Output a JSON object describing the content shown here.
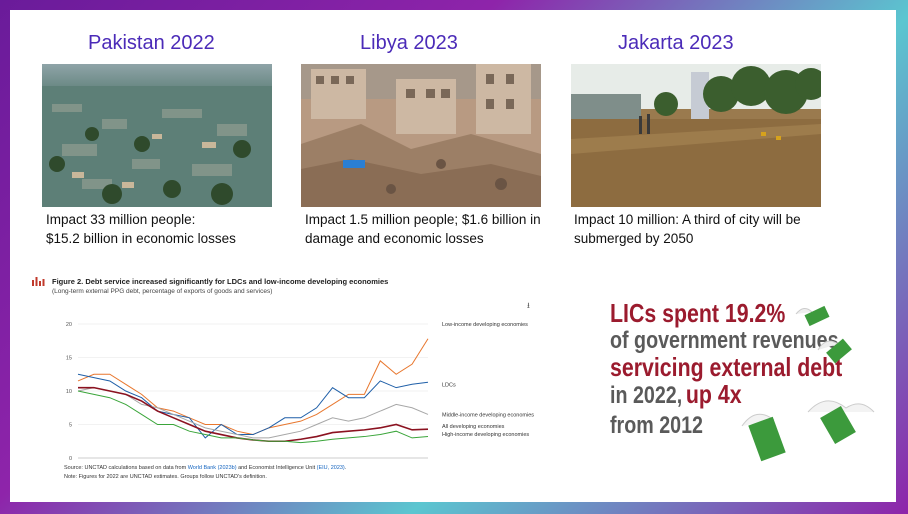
{
  "locations": [
    {
      "title": "Pakistan 2022",
      "caption_line1": "Impact 33 million people:",
      "caption_line2": "$15.2 billion in economic losses",
      "image": "flooded-village-aerial-photo"
    },
    {
      "title": "Libya 2023",
      "caption_line1": "Impact 1.5 million people; $1.6 billion in",
      "caption_line2": "damage and economic  losses",
      "image": "destroyed-buildings-photo"
    },
    {
      "title": "Jakarta 2023",
      "caption_line1": "Impact 10 million: A third of city will be",
      "caption_line2": "submerged by 2050",
      "image": "flooded-city-street-photo"
    }
  ],
  "chart": {
    "title": "Figure 2. Debt service increased significantly for LDCs and low-income developing economies",
    "subtitle": "(Long-term external PPG debt, percentage of exports of goods and services)",
    "source_prefix": "Source: UNCTAD calculations based on data from",
    "source_link1": "World Bank (2023b)",
    "source_mid": "and Economist Intelligence Unit",
    "source_link2": "(EIU, 2023)",
    "source_end": ".",
    "note": "Note: Figures for 2022 are UNCTAD estimates. Groups follow UNCTAD's definition.",
    "download_icon": "download-icon",
    "y_ticks": [
      "0",
      "5",
      "10",
      "15",
      "20"
    ],
    "x_ticks": [
      "2000",
      "2005",
      "2010",
      "2015",
      "2020"
    ]
  },
  "chart_data": {
    "type": "line",
    "x": [
      2000,
      2001,
      2002,
      2003,
      2004,
      2005,
      2006,
      2007,
      2008,
      2009,
      2010,
      2011,
      2012,
      2013,
      2014,
      2015,
      2016,
      2017,
      2018,
      2019,
      2020,
      2021,
      2022
    ],
    "ylim": [
      0,
      20
    ],
    "xlim": [
      2000,
      2022
    ],
    "series": [
      {
        "name": "Low-income developing economies",
        "color": "#e8772e",
        "values": [
          11.5,
          12.5,
          12.5,
          11.0,
          9.5,
          7.5,
          7.0,
          6.0,
          5.0,
          5.0,
          4.0,
          3.5,
          4.5,
          5.0,
          5.5,
          6.5,
          8.0,
          9.5,
          9.5,
          14.5,
          12.5,
          14.0,
          17.8
        ]
      },
      {
        "name": "LDCs",
        "color": "#1f5fa8",
        "values": [
          12.5,
          12.0,
          11.5,
          10.0,
          9.0,
          7.0,
          6.5,
          6.0,
          3.0,
          5.0,
          3.5,
          3.5,
          4.5,
          6.0,
          6.0,
          7.5,
          10.5,
          9.0,
          9.0,
          11.5,
          10.5,
          11.0,
          11.3
        ]
      },
      {
        "name": "Middle-income developing economies",
        "color": "#a7a7a7",
        "values": [
          10.0,
          10.5,
          10.0,
          9.5,
          8.0,
          7.5,
          6.5,
          5.5,
          4.5,
          4.0,
          3.5,
          3.0,
          3.0,
          3.5,
          4.0,
          5.0,
          6.0,
          5.5,
          6.0,
          7.0,
          8.0,
          7.5,
          6.5
        ]
      },
      {
        "name": "All developing economies",
        "color": "#8b1220",
        "values": [
          10.5,
          10.5,
          10.0,
          9.5,
          8.5,
          7.0,
          6.0,
          5.0,
          4.0,
          3.5,
          3.0,
          2.7,
          2.5,
          2.5,
          2.8,
          3.2,
          3.8,
          4.0,
          4.2,
          4.5,
          5.0,
          4.2,
          4.3
        ]
      },
      {
        "name": "High-income developing economies",
        "color": "#3aa53a",
        "values": [
          10.0,
          9.5,
          9.0,
          8.0,
          6.5,
          5.0,
          5.0,
          4.0,
          3.5,
          3.0,
          3.0,
          2.7,
          2.5,
          2.5,
          2.3,
          2.5,
          2.8,
          3.0,
          3.2,
          3.5,
          4.0,
          3.0,
          3.2
        ]
      }
    ]
  },
  "stat": {
    "line1": "LICs spent 19.2%",
    "line2": "of government revenues",
    "line3": "servicing external debt",
    "line4a": "in 2022,",
    "line4b": "up 4x",
    "line5": "from 2012",
    "decoration": "flying-money-icon"
  },
  "colors": {
    "title": "#4b2bb8",
    "stat_red": "#9b1b2e",
    "stat_gray": "#5a5a5a",
    "frame": "#8e24aa"
  }
}
